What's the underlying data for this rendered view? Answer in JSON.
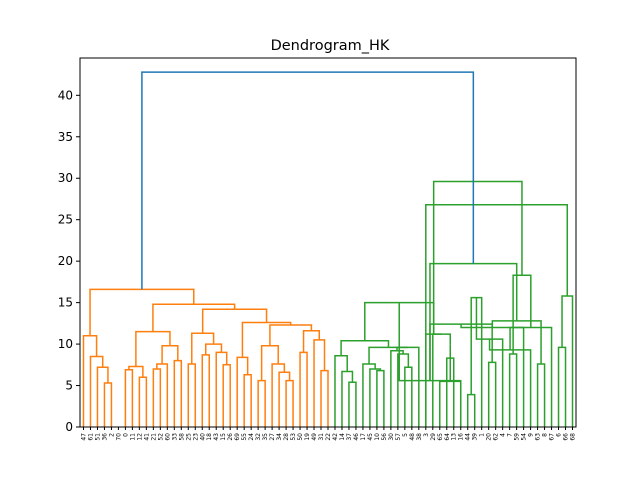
{
  "chart_data": {
    "type": "dendrogram",
    "title": "Dendrogram_HK",
    "xlabel": "",
    "ylabel": "",
    "ylim": [
      0,
      44.5
    ],
    "yticks": [
      0,
      5,
      10,
      15,
      20,
      25,
      30,
      35,
      40
    ],
    "grid": false,
    "leaf_labels": [
      "47",
      "61",
      "51",
      "36",
      "2",
      "70",
      "0",
      "11",
      "12",
      "41",
      "21",
      "52",
      "60",
      "33",
      "58",
      "25",
      "23",
      "40",
      "18",
      "43",
      "15",
      "26",
      "69",
      "55",
      "24",
      "32",
      "35",
      "27",
      "34",
      "28",
      "53",
      "50",
      "19",
      "49",
      "31",
      "22",
      "42",
      "14",
      "37",
      "46",
      "17",
      "45",
      "10",
      "56",
      "30",
      "57",
      "5",
      "48",
      "38",
      "3",
      "29",
      "65",
      "64",
      "13",
      "16",
      "44",
      "39",
      "1",
      "20",
      "62",
      "4",
      "7",
      "59",
      "54",
      "9",
      "63",
      "8",
      "67",
      "6",
      "66",
      "68"
    ],
    "colors": {
      "cluster_a": "#ff7f0e",
      "cluster_b": "#2ca02c",
      "root": "#1f77b4"
    },
    "merges": [
      [
        3,
        4,
        5.3,
        "cluster_a"
      ],
      [
        2,
        71,
        7.2,
        "cluster_a"
      ],
      [
        1,
        72,
        8.5,
        "cluster_a"
      ],
      [
        0,
        73,
        11.0,
        "cluster_a"
      ],
      [
        6,
        7,
        6.9,
        "cluster_a"
      ],
      [
        8,
        9,
        6.0,
        "cluster_a"
      ],
      [
        75,
        76,
        7.3,
        "cluster_a"
      ],
      [
        10,
        11,
        7.0,
        "cluster_a"
      ],
      [
        12,
        78,
        7.6,
        "cluster_a"
      ],
      [
        13,
        14,
        8.0,
        "cluster_a"
      ],
      [
        79,
        80,
        9.8,
        "cluster_a"
      ],
      [
        77,
        81,
        11.5,
        "cluster_a"
      ],
      [
        15,
        16,
        7.6,
        "cluster_a"
      ],
      [
        17,
        18,
        8.7,
        "cluster_a"
      ],
      [
        20,
        21,
        7.5,
        "cluster_a"
      ],
      [
        19,
        85,
        9.0,
        "cluster_a"
      ],
      [
        84,
        86,
        10.0,
        "cluster_a"
      ],
      [
        83,
        87,
        11.3,
        "cluster_a"
      ],
      [
        23,
        24,
        6.3,
        "cluster_a"
      ],
      [
        22,
        89,
        8.4,
        "cluster_a"
      ],
      [
        25,
        26,
        5.6,
        "cluster_a"
      ],
      [
        29,
        30,
        5.6,
        "cluster_a"
      ],
      [
        28,
        92,
        6.6,
        "cluster_a"
      ],
      [
        27,
        93,
        7.6,
        "cluster_a"
      ],
      [
        91,
        94,
        9.8,
        "cluster_a"
      ],
      [
        31,
        32,
        9.0,
        "cluster_a"
      ],
      [
        34,
        35,
        6.8,
        "cluster_a"
      ],
      [
        33,
        97,
        10.5,
        "cluster_a"
      ],
      [
        96,
        98,
        11.6,
        "cluster_a"
      ],
      [
        95,
        99,
        12.3,
        "cluster_a"
      ],
      [
        90,
        100,
        12.6,
        "cluster_a"
      ],
      [
        88,
        101,
        14.2,
        "cluster_a"
      ],
      [
        82,
        102,
        14.8,
        "cluster_a"
      ],
      [
        74,
        103,
        16.6,
        "cluster_a"
      ],
      [
        38,
        39,
        5.4,
        "cluster_b"
      ],
      [
        37,
        105,
        6.7,
        "cluster_b"
      ],
      [
        36,
        106,
        8.6,
        "cluster_b"
      ],
      [
        42,
        43,
        6.8,
        "cluster_b"
      ],
      [
        41,
        108,
        7.0,
        "cluster_b"
      ],
      [
        40,
        109,
        7.6,
        "cluster_b"
      ],
      [
        46,
        47,
        7.2,
        "cluster_b"
      ],
      [
        45,
        111,
        8.8,
        "cluster_b"
      ],
      [
        44,
        112,
        9.2,
        "cluster_b"
      ],
      [
        48,
        113,
        9.6,
        "cluster_b"
      ],
      [
        110,
        114,
        9.6,
        "cluster_b"
      ],
      [
        107,
        115,
        10.4,
        "cluster_b"
      ],
      [
        52,
        53,
        8.3,
        "cluster_b"
      ],
      [
        51,
        54,
        5.5,
        "cluster_b"
      ],
      [
        117,
        118,
        9.9,
        "cluster_b"
      ],
      [
        50,
        119,
        11.2,
        "cluster_b"
      ],
      [
        49,
        120,
        11.2,
        "cluster_b"
      ],
      [
        116,
        121,
        15.0,
        "cluster_b"
      ],
      [
        55,
        56,
        3.9,
        "cluster_b"
      ],
      [
        54,
        122,
        5.6,
        "cluster_b"
      ],
      [
        57,
        123,
        15.6,
        "cluster_b"
      ],
      [
        58,
        59,
        7.8,
        "cluster_b"
      ],
      [
        61,
        62,
        8.8,
        "cluster_b"
      ],
      [
        60,
        125,
        10.6,
        "cluster_b"
      ],
      [
        124,
        126,
        12.4,
        "cluster_b"
      ],
      [
        65,
        66,
        7.6,
        "cluster_b"
      ],
      [
        64,
        128,
        9.3,
        "cluster_b"
      ],
      [
        63,
        129,
        12.0,
        "cluster_b"
      ],
      [
        68,
        69,
        9.6,
        "cluster_b"
      ],
      [
        67,
        131,
        12.0,
        "cluster_b"
      ],
      [
        130,
        132,
        12.8,
        "cluster_b"
      ],
      [
        70,
        133,
        15.8,
        "cluster_b"
      ],
      [
        127,
        134,
        18.3,
        "cluster_b"
      ],
      [
        124,
        135,
        19.7,
        "cluster_b"
      ],
      [
        49,
        136,
        26.8,
        "cluster_b"
      ],
      [
        121,
        137,
        29.6,
        "cluster_b"
      ],
      [
        104,
        138,
        42.8,
        "root"
      ]
    ]
  }
}
